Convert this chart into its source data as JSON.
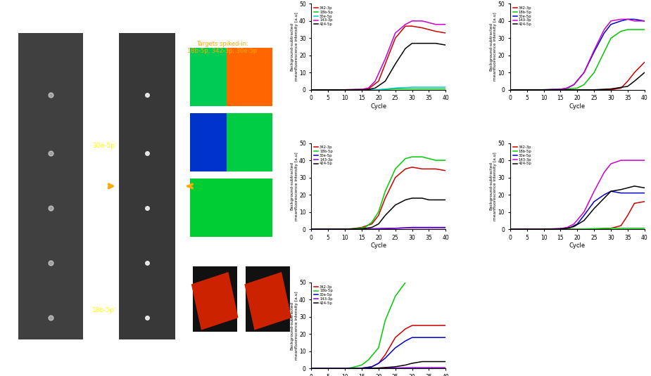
{
  "ylabel": "Background-subtracted\nmeanfluorescence intensity [a.u]",
  "xlabel": "Cycle",
  "xlim": [
    0,
    40
  ],
  "ylim": [
    0,
    50
  ],
  "xticks": [
    0,
    5,
    10,
    15,
    20,
    25,
    30,
    35,
    40
  ],
  "bg_color": "#5a7a8a",
  "legend_colors_per_plot": [
    [
      "#cc0000",
      "#00cc00",
      "#00cccc",
      "#cc00cc",
      "#000000"
    ],
    [
      "#cc0000",
      "#00cc00",
      "#0000cc",
      "#cc00cc",
      "#000000"
    ],
    [
      "#cc0000",
      "#00cc00",
      "#0000cc",
      "#8800cc",
      "#000000"
    ],
    [
      "#cc0000",
      "#00cc00",
      "#0000cc",
      "#cc00cc",
      "#000000"
    ],
    [
      "#cc0000",
      "#00cc00",
      "#0000cc",
      "#8800cc",
      "#000000"
    ]
  ],
  "legend_labels_per_plot": [
    [
      "342-3p",
      "18b-5p",
      "30e-5p",
      "143-3p",
      "424-5p"
    ],
    [
      "342-3p",
      "18b-5p",
      "30e-5p",
      "143-3p",
      "424-5p"
    ],
    [
      "342-3p",
      "18b-5p",
      "30e-5p",
      "143-3p",
      "424-5p"
    ],
    [
      "342-3p",
      "18b-5p",
      "30e-5p",
      "143-3p",
      "424-5p"
    ],
    [
      "342-3p",
      "18b-5p",
      "30e-5p",
      "143-3p",
      "424-5p"
    ]
  ],
  "plots": [
    {
      "curves": [
        {
          "data_x": [
            0,
            5,
            10,
            15,
            17,
            20,
            22,
            25,
            28,
            30,
            33,
            35,
            37,
            40
          ],
          "data_y": [
            0,
            0,
            0,
            0.2,
            0.5,
            5,
            15,
            30,
            37,
            37,
            36,
            35,
            34,
            33
          ]
        },
        {
          "data_x": [
            0,
            5,
            10,
            15,
            20,
            25,
            30,
            35,
            40
          ],
          "data_y": [
            0,
            0,
            0,
            0,
            0,
            0.5,
            0.5,
            0.5,
            0.5
          ]
        },
        {
          "data_x": [
            0,
            5,
            10,
            15,
            20,
            25,
            30,
            35,
            40
          ],
          "data_y": [
            0,
            0,
            0,
            0,
            0,
            1,
            1.5,
            1.5,
            1.5
          ]
        },
        {
          "data_x": [
            0,
            5,
            10,
            15,
            17,
            19,
            22,
            25,
            28,
            30,
            33,
            35,
            37,
            40
          ],
          "data_y": [
            0,
            0,
            0,
            0.3,
            1,
            5,
            18,
            33,
            38,
            40,
            40,
            39,
            38,
            38
          ]
        },
        {
          "data_x": [
            0,
            5,
            10,
            15,
            17,
            19,
            22,
            25,
            28,
            30,
            33,
            35,
            37,
            40
          ],
          "data_y": [
            0,
            0,
            0,
            0,
            0.2,
            1,
            5,
            15,
            24,
            27,
            27,
            27,
            27,
            26
          ]
        }
      ]
    },
    {
      "curves": [
        {
          "data_x": [
            0,
            5,
            10,
            15,
            20,
            25,
            30,
            33,
            35,
            37,
            40
          ],
          "data_y": [
            0,
            0,
            0,
            0,
            0,
            0,
            0,
            1,
            5,
            10,
            16
          ]
        },
        {
          "data_x": [
            0,
            5,
            10,
            15,
            20,
            22,
            25,
            28,
            30,
            33,
            35,
            37,
            40
          ],
          "data_y": [
            0,
            0,
            0,
            0.2,
            1,
            3,
            10,
            22,
            30,
            34,
            35,
            35,
            35
          ]
        },
        {
          "data_x": [
            0,
            5,
            10,
            15,
            17,
            19,
            22,
            25,
            28,
            30,
            33,
            35,
            37,
            40
          ],
          "data_y": [
            0,
            0,
            0,
            0.3,
            1,
            3,
            10,
            22,
            33,
            38,
            40,
            41,
            41,
            40
          ]
        },
        {
          "data_x": [
            0,
            5,
            10,
            15,
            17,
            19,
            22,
            25,
            28,
            30,
            33,
            35,
            37,
            40
          ],
          "data_y": [
            0,
            0,
            0,
            0.3,
            1,
            3,
            10,
            23,
            35,
            40,
            41,
            41,
            40,
            40
          ]
        },
        {
          "data_x": [
            0,
            5,
            10,
            15,
            20,
            25,
            30,
            35,
            37,
            40
          ],
          "data_y": [
            0,
            0,
            0,
            0,
            0,
            0,
            0.5,
            2,
            5,
            10
          ]
        }
      ]
    },
    {
      "curves": [
        {
          "data_x": [
            0,
            5,
            10,
            12,
            15,
            18,
            20,
            22,
            25,
            28,
            30,
            33,
            35,
            37,
            40
          ],
          "data_y": [
            0,
            0,
            0,
            0.2,
            1,
            3,
            8,
            18,
            30,
            35,
            36,
            35,
            35,
            35,
            34
          ]
        },
        {
          "data_x": [
            0,
            5,
            10,
            13,
            16,
            18,
            20,
            22,
            25,
            28,
            30,
            33,
            35,
            37,
            40
          ],
          "data_y": [
            0,
            0,
            0,
            0.3,
            1,
            4,
            10,
            22,
            35,
            41,
            42,
            42,
            41,
            40,
            40
          ]
        },
        {
          "data_x": [
            0,
            5,
            10,
            15,
            20,
            25,
            30,
            35,
            40
          ],
          "data_y": [
            0,
            0,
            0,
            0,
            0.3,
            0.5,
            1,
            1,
            1
          ]
        },
        {
          "data_x": [
            0,
            5,
            10,
            15,
            20,
            25,
            30,
            35,
            40
          ],
          "data_y": [
            0,
            0,
            0,
            0,
            0.2,
            0.5,
            0.8,
            0.8,
            0.8
          ]
        },
        {
          "data_x": [
            0,
            5,
            10,
            15,
            18,
            20,
            22,
            25,
            28,
            30,
            33,
            35,
            37,
            40
          ],
          "data_y": [
            0,
            0,
            0,
            0.2,
            1,
            3,
            8,
            14,
            17,
            18,
            18,
            17,
            17,
            17
          ]
        }
      ]
    },
    {
      "curves": [
        {
          "data_x": [
            0,
            5,
            10,
            15,
            20,
            25,
            30,
            33,
            35,
            37,
            40
          ],
          "data_y": [
            0,
            0,
            0,
            0,
            0,
            0,
            0.5,
            2,
            8,
            15,
            16
          ]
        },
        {
          "data_x": [
            0,
            5,
            10,
            15,
            20,
            25,
            30,
            35,
            40
          ],
          "data_y": [
            0,
            0,
            0,
            0,
            0,
            0.3,
            0.5,
            0.5,
            0.5
          ]
        },
        {
          "data_x": [
            0,
            5,
            10,
            15,
            18,
            20,
            22,
            25,
            28,
            30,
            33,
            35,
            37,
            40
          ],
          "data_y": [
            0,
            0,
            0,
            0.2,
            1,
            3,
            8,
            16,
            20,
            22,
            21,
            21,
            21,
            21
          ]
        },
        {
          "data_x": [
            0,
            5,
            10,
            15,
            17,
            19,
            22,
            25,
            28,
            30,
            33,
            35,
            37,
            40
          ],
          "data_y": [
            0,
            0,
            0,
            0.3,
            1,
            3,
            10,
            22,
            33,
            38,
            40,
            40,
            40,
            40
          ]
        },
        {
          "data_x": [
            0,
            5,
            10,
            15,
            17,
            19,
            22,
            25,
            28,
            30,
            33,
            35,
            37,
            40
          ],
          "data_y": [
            0,
            0,
            0,
            0.2,
            0.5,
            1.5,
            5,
            12,
            18,
            22,
            23,
            24,
            25,
            24
          ]
        }
      ]
    },
    {
      "curves": [
        {
          "data_x": [
            0,
            5,
            10,
            15,
            18,
            20,
            22,
            25,
            28,
            30,
            33,
            35,
            37,
            40
          ],
          "data_y": [
            0,
            0,
            0,
            0.2,
            1,
            3,
            8,
            18,
            23,
            25,
            25,
            25,
            25,
            25
          ]
        },
        {
          "data_x": [
            0,
            5,
            10,
            12,
            15,
            17,
            20,
            22,
            25,
            28,
            30,
            33,
            35,
            37,
            40
          ],
          "data_y": [
            0,
            0,
            0,
            0.5,
            2,
            5,
            12,
            28,
            42,
            50,
            53,
            54,
            54,
            53,
            53
          ]
        },
        {
          "data_x": [
            0,
            5,
            10,
            15,
            18,
            20,
            22,
            25,
            28,
            30,
            33,
            35,
            37,
            40
          ],
          "data_y": [
            0,
            0,
            0,
            0.2,
            1,
            3,
            6,
            12,
            16,
            18,
            18,
            18,
            18,
            18
          ]
        },
        {
          "data_x": [
            0,
            5,
            10,
            15,
            20,
            25,
            30,
            35,
            40
          ],
          "data_y": [
            0,
            0,
            0,
            0,
            0.2,
            0.3,
            0.5,
            0.5,
            0.5
          ]
        },
        {
          "data_x": [
            0,
            5,
            10,
            15,
            20,
            25,
            28,
            30,
            33,
            35,
            37,
            40
          ],
          "data_y": [
            0,
            0,
            0,
            0,
            0.3,
            1,
            2,
            3,
            4,
            4,
            4,
            4
          ]
        }
      ]
    }
  ]
}
